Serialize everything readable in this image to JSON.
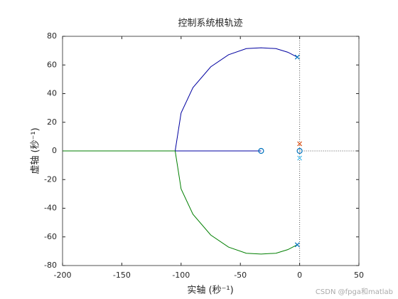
{
  "chart_data": {
    "type": "line",
    "title": "控制系统根轨迹",
    "x_label": "实轴 (秒⁻¹)",
    "y_label": "虚轴 (秒⁻¹)",
    "xlim": [
      -200,
      50
    ],
    "ylim": [
      -80,
      80
    ],
    "xticks": [
      -200,
      -150,
      -100,
      -50,
      0,
      50
    ],
    "yticks": [
      -80,
      -60,
      -40,
      -20,
      0,
      20,
      40,
      60,
      80
    ],
    "crosshair": {
      "x": 0,
      "y": 0
    },
    "series": [
      {
        "color": "#0000a0",
        "x": [
          -2,
          -10,
          -20,
          -32.5,
          -45,
          -60,
          -75,
          -90,
          -100,
          -105,
          -80,
          -60,
          -32.5
        ],
        "values": [
          65.5,
          68.9,
          71.4,
          72,
          71.4,
          67.1,
          58.7,
          44.2,
          26.5,
          0,
          0,
          0,
          0
        ]
      },
      {
        "color": "#007f00",
        "x": [
          -2,
          -10,
          -20,
          -32.5,
          -45,
          -60,
          -75,
          -90,
          -100,
          -105,
          -130,
          -160,
          -200
        ],
        "values": [
          -65.5,
          -68.9,
          -71.4,
          -72,
          -71.4,
          -67.1,
          -58.7,
          -44.2,
          -26.5,
          0,
          0,
          0,
          0
        ]
      }
    ],
    "poles": {
      "x": [
        -2,
        -2,
        0,
        0
      ],
      "values": [
        65.5,
        -65.5,
        5,
        -5
      ],
      "colors": [
        "#0072bd",
        "#0072bd",
        "#d95319",
        "#4dbeee"
      ]
    },
    "zeros": {
      "x": [
        -32.5,
        0
      ],
      "values": [
        0,
        0
      ],
      "colors": [
        "#0072bd",
        "#0072bd"
      ]
    },
    "watermark": "CSDN @fpga和matlab"
  }
}
